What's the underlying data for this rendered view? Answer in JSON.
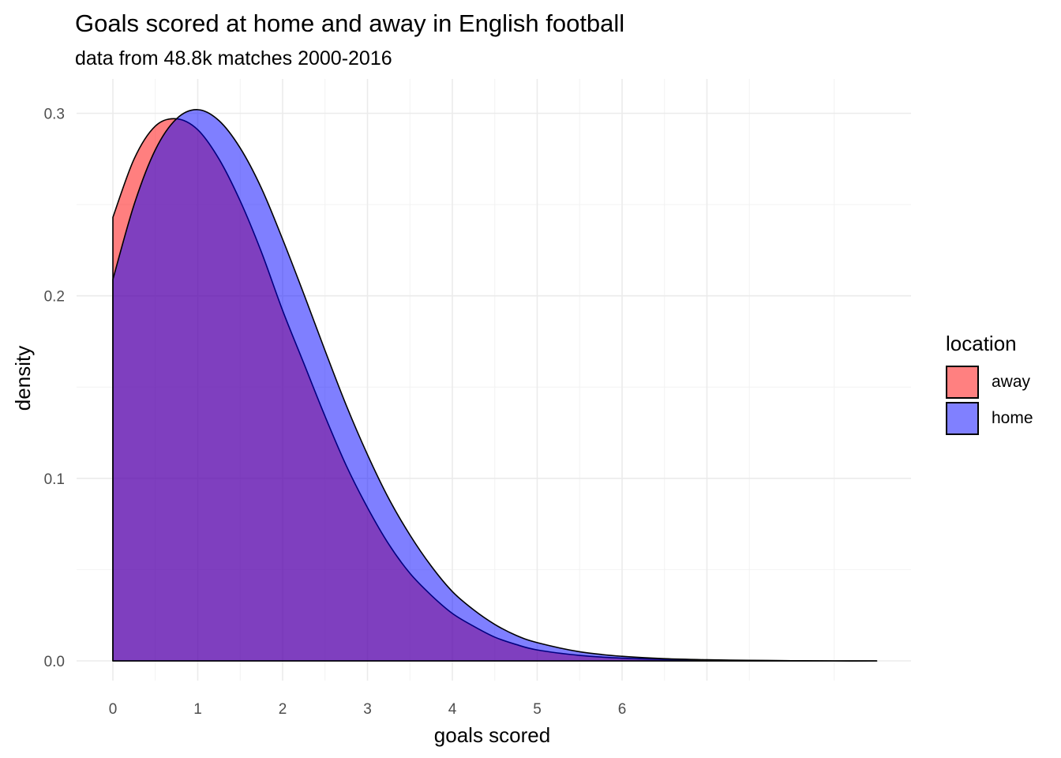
{
  "chart_data": {
    "type": "area",
    "title": "Goals scored at home and away in English football",
    "subtitle": "data from 48.8k matches 2000-2016",
    "xlabel": "goals scored",
    "ylabel": "density",
    "xlim": [
      0,
      9
    ],
    "ylim": [
      0,
      0.3
    ],
    "x_ticks": [
      0,
      1,
      2,
      3,
      4,
      5,
      6
    ],
    "y_ticks": [
      0.0,
      0.1,
      0.2,
      0.3
    ],
    "y_tick_labels": [
      "0.0",
      "0.1",
      "0.2",
      "0.3"
    ],
    "legend_title": "location",
    "legend_position": "right",
    "grid": true,
    "series": [
      {
        "name": "away",
        "color": "#ff0000",
        "fill_alpha": 0.5,
        "x": [
          0,
          0.25,
          0.5,
          0.75,
          1.0,
          1.25,
          1.5,
          1.75,
          2.0,
          2.25,
          2.5,
          2.75,
          3.0,
          3.25,
          3.5,
          3.75,
          4.0,
          4.25,
          4.5,
          4.75,
          5.0,
          5.5,
          6.0,
          6.5,
          7.0,
          7.5,
          8.0,
          8.5,
          9.0
        ],
        "values": [
          0.243,
          0.275,
          0.293,
          0.297,
          0.291,
          0.275,
          0.252,
          0.224,
          0.192,
          0.163,
          0.134,
          0.107,
          0.084,
          0.064,
          0.048,
          0.036,
          0.026,
          0.019,
          0.013,
          0.009,
          0.006,
          0.003,
          0.0015,
          0.0008,
          0.0004,
          0.0002,
          0.0001,
          0.0,
          0.0
        ]
      },
      {
        "name": "home",
        "color": "#0000ff",
        "fill_alpha": 0.5,
        "x": [
          0,
          0.25,
          0.5,
          0.75,
          1.0,
          1.25,
          1.5,
          1.75,
          2.0,
          2.25,
          2.5,
          2.75,
          3.0,
          3.25,
          3.5,
          3.75,
          4.0,
          4.25,
          4.5,
          4.75,
          5.0,
          5.5,
          6.0,
          6.5,
          7.0,
          7.5,
          8.0,
          8.5,
          9.0
        ],
        "values": [
          0.209,
          0.25,
          0.28,
          0.297,
          0.302,
          0.296,
          0.281,
          0.259,
          0.231,
          0.201,
          0.17,
          0.14,
          0.113,
          0.089,
          0.069,
          0.052,
          0.038,
          0.028,
          0.02,
          0.014,
          0.01,
          0.005,
          0.0025,
          0.0012,
          0.0006,
          0.0003,
          0.0001,
          0.0,
          0.0
        ]
      }
    ]
  }
}
